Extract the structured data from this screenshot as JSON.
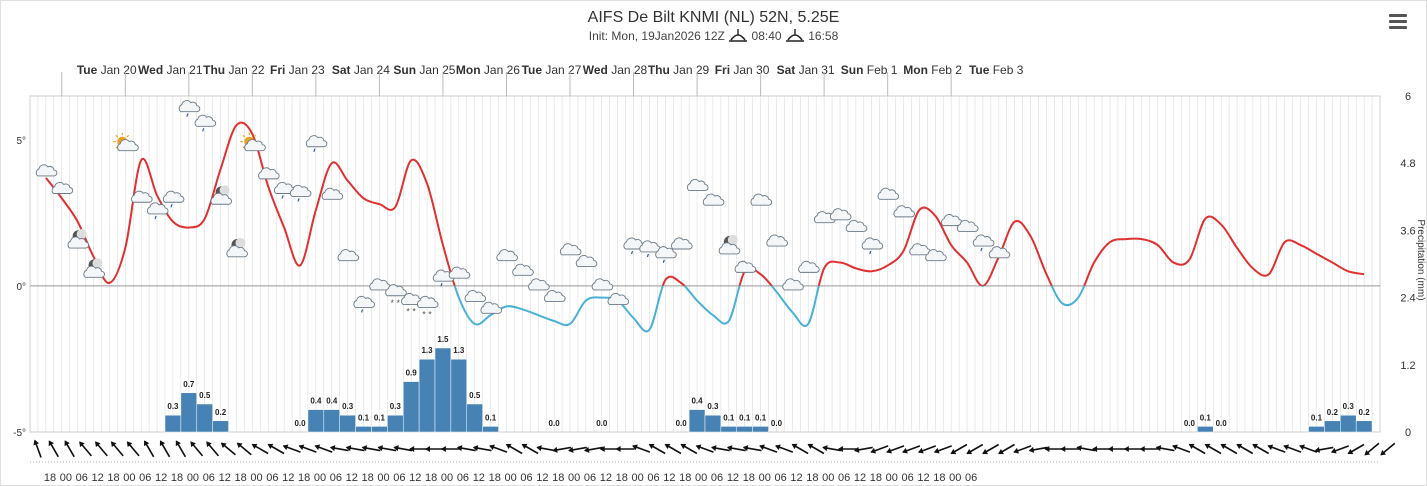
{
  "title": "AIFS De Bilt KNMI (NL) 52N, 5.25E",
  "subtitle": {
    "init": "Init: Mon, 19Jan2026 12Z",
    "sunrise": "08:40",
    "sunset": "16:58"
  },
  "menu_icon": "hamburger-menu-icon",
  "chart_data": {
    "type": "line",
    "days": [
      {
        "dow": "Tue",
        "date": "Jan 20"
      },
      {
        "dow": "Wed",
        "date": "Jan 21"
      },
      {
        "dow": "Thu",
        "date": "Jan 22"
      },
      {
        "dow": "Fri",
        "date": "Jan 23"
      },
      {
        "dow": "Sat",
        "date": "Jan 24"
      },
      {
        "dow": "Sun",
        "date": "Jan 25"
      },
      {
        "dow": "Mon",
        "date": "Jan 26"
      },
      {
        "dow": "Tue",
        "date": "Jan 27"
      },
      {
        "dow": "Wed",
        "date": "Jan 28"
      },
      {
        "dow": "Thu",
        "date": "Jan 29"
      },
      {
        "dow": "Fri",
        "date": "Jan 30"
      },
      {
        "dow": "Sat",
        "date": "Jan 31"
      },
      {
        "dow": "Sun",
        "date": "Feb 1"
      },
      {
        "dow": "Mon",
        "date": "Feb 2"
      },
      {
        "dow": "Tue",
        "date": "Feb 3"
      }
    ],
    "hour_ticks": [
      "18",
      "00",
      "06",
      "12",
      "18",
      "00",
      "06",
      "12",
      "18",
      "00",
      "06",
      "12",
      "18",
      "00",
      "06",
      "12",
      "18",
      "00",
      "06",
      "12",
      "18",
      "00",
      "06",
      "12",
      "18",
      "00",
      "06",
      "12",
      "18",
      "00",
      "06",
      "12",
      "18",
      "00",
      "06",
      "12",
      "18",
      "00",
      "06",
      "12",
      "18",
      "00",
      "06",
      "12",
      "18",
      "00",
      "06",
      "12",
      "18",
      "00",
      "06",
      "12",
      "18",
      "00",
      "06",
      "12",
      "18",
      "00",
      "06"
    ],
    "temperature_axis": {
      "ticks": [
        "5°",
        "0°",
        "-5°"
      ],
      "values": [
        5,
        0,
        -5
      ],
      "range": [
        -5,
        6.5
      ]
    },
    "precip_axis": {
      "label": "Precipitation (mm)",
      "ticks": [
        "6",
        "4.8",
        "3.6",
        "2.4",
        "1.2",
        "0"
      ],
      "range": [
        0,
        6
      ]
    },
    "series": [
      {
        "color_warm": "#e03030",
        "color_cold": "#4ab0d8",
        "values": [
          [
            0,
            3.7
          ],
          [
            6,
            3.0
          ],
          [
            12,
            2.2
          ],
          [
            18,
            1.0
          ],
          [
            24,
            0.1
          ],
          [
            30,
            1.3
          ],
          [
            36,
            4.3
          ],
          [
            42,
            3.1
          ],
          [
            48,
            2.2
          ],
          [
            54,
            2.0
          ],
          [
            60,
            2.3
          ],
          [
            66,
            4.0
          ],
          [
            72,
            5.5
          ],
          [
            78,
            5.2
          ],
          [
            84,
            3.4
          ],
          [
            90,
            2.0
          ],
          [
            96,
            0.7
          ],
          [
            102,
            2.6
          ],
          [
            108,
            4.2
          ],
          [
            114,
            3.6
          ],
          [
            120,
            3.0
          ],
          [
            126,
            2.8
          ],
          [
            132,
            2.7
          ],
          [
            138,
            4.3
          ],
          [
            144,
            3.5
          ],
          [
            150,
            1.4
          ],
          [
            156,
            -0.4
          ],
          [
            162,
            -1.3
          ],
          [
            168,
            -1.0
          ],
          [
            174,
            -0.7
          ],
          [
            180,
            -0.8
          ],
          [
            186,
            -1.0
          ],
          [
            192,
            -1.2
          ],
          [
            198,
            -1.3
          ],
          [
            204,
            -0.5
          ],
          [
            210,
            -0.4
          ],
          [
            216,
            -0.5
          ],
          [
            222,
            -1.1
          ],
          [
            228,
            -1.5
          ],
          [
            234,
            0.2
          ],
          [
            240,
            0.1
          ],
          [
            246,
            -0.5
          ],
          [
            252,
            -1.0
          ],
          [
            258,
            -1.2
          ],
          [
            264,
            0.5
          ],
          [
            270,
            0.4
          ],
          [
            276,
            -0.2
          ],
          [
            282,
            -0.9
          ],
          [
            288,
            -1.3
          ],
          [
            294,
            0.6
          ],
          [
            300,
            0.8
          ],
          [
            306,
            0.6
          ],
          [
            312,
            0.5
          ],
          [
            318,
            0.7
          ],
          [
            324,
            1.2
          ],
          [
            330,
            2.6
          ],
          [
            336,
            2.4
          ],
          [
            342,
            1.4
          ],
          [
            348,
            0.8
          ],
          [
            354,
            0.0
          ],
          [
            360,
            1.0
          ],
          [
            366,
            2.2
          ],
          [
            372,
            1.7
          ],
          [
            378,
            0.4
          ],
          [
            384,
            -0.6
          ],
          [
            390,
            -0.4
          ],
          [
            396,
            0.8
          ],
          [
            402,
            1.5
          ],
          [
            408,
            1.6
          ],
          [
            414,
            1.6
          ],
          [
            420,
            1.4
          ],
          [
            426,
            0.8
          ],
          [
            432,
            0.9
          ],
          [
            438,
            2.3
          ],
          [
            444,
            2.1
          ],
          [
            450,
            1.3
          ],
          [
            456,
            0.6
          ],
          [
            462,
            0.4
          ],
          [
            468,
            1.5
          ],
          [
            474,
            1.4
          ],
          [
            480,
            1.1
          ],
          [
            486,
            0.8
          ],
          [
            492,
            0.5
          ],
          [
            498,
            0.4
          ]
        ]
      }
    ],
    "precipitation": [
      {
        "h": 0,
        "v": 0.0,
        "lbl": ""
      },
      {
        "h": 6,
        "v": 0.0,
        "lbl": ""
      },
      {
        "h": 12,
        "v": 0.0,
        "lbl": ""
      },
      {
        "h": 18,
        "v": 0.0,
        "lbl": ""
      },
      {
        "h": 24,
        "v": 0.0,
        "lbl": ""
      },
      {
        "h": 30,
        "v": 0.0,
        "lbl": ""
      },
      {
        "h": 36,
        "v": 0.0,
        "lbl": ""
      },
      {
        "h": 42,
        "v": 0.0,
        "lbl": ""
      },
      {
        "h": 48,
        "v": 0.3,
        "lbl": "0.3"
      },
      {
        "h": 54,
        "v": 0.7,
        "lbl": "0.7"
      },
      {
        "h": 60,
        "v": 0.5,
        "lbl": "0.5"
      },
      {
        "h": 66,
        "v": 0.2,
        "lbl": "0.2"
      },
      {
        "h": 72,
        "v": 0.0,
        "lbl": ""
      },
      {
        "h": 78,
        "v": 0.0,
        "lbl": ""
      },
      {
        "h": 84,
        "v": 0.0,
        "lbl": ""
      },
      {
        "h": 90,
        "v": 0.0,
        "lbl": ""
      },
      {
        "h": 96,
        "v": 0.0,
        "lbl": "0.0"
      },
      {
        "h": 102,
        "v": 0.4,
        "lbl": "0.4"
      },
      {
        "h": 108,
        "v": 0.4,
        "lbl": "0.4"
      },
      {
        "h": 114,
        "v": 0.3,
        "lbl": "0.3"
      },
      {
        "h": 120,
        "v": 0.1,
        "lbl": "0.1"
      },
      {
        "h": 126,
        "v": 0.1,
        "lbl": "0.1"
      },
      {
        "h": 132,
        "v": 0.3,
        "lbl": "0.3"
      },
      {
        "h": 138,
        "v": 0.9,
        "lbl": "0.9"
      },
      {
        "h": 144,
        "v": 1.3,
        "lbl": "1.3"
      },
      {
        "h": 150,
        "v": 1.5,
        "lbl": "1.5"
      },
      {
        "h": 156,
        "v": 1.3,
        "lbl": "1.3"
      },
      {
        "h": 162,
        "v": 0.5,
        "lbl": "0.5"
      },
      {
        "h": 168,
        "v": 0.1,
        "lbl": "0.1"
      },
      {
        "h": 174,
        "v": 0.0,
        "lbl": ""
      },
      {
        "h": 180,
        "v": 0.0,
        "lbl": ""
      },
      {
        "h": 186,
        "v": 0.0,
        "lbl": ""
      },
      {
        "h": 192,
        "v": 0.0,
        "lbl": "0.0"
      },
      {
        "h": 198,
        "v": 0.0,
        "lbl": ""
      },
      {
        "h": 204,
        "v": 0.0,
        "lbl": ""
      },
      {
        "h": 210,
        "v": 0.0,
        "lbl": "0.0"
      },
      {
        "h": 216,
        "v": 0.0,
        "lbl": ""
      },
      {
        "h": 222,
        "v": 0.0,
        "lbl": ""
      },
      {
        "h": 228,
        "v": 0.0,
        "lbl": ""
      },
      {
        "h": 234,
        "v": 0.0,
        "lbl": ""
      },
      {
        "h": 240,
        "v": 0.0,
        "lbl": "0.0"
      },
      {
        "h": 246,
        "v": 0.4,
        "lbl": "0.4"
      },
      {
        "h": 252,
        "v": 0.3,
        "lbl": "0.3"
      },
      {
        "h": 258,
        "v": 0.1,
        "lbl": "0.1"
      },
      {
        "h": 264,
        "v": 0.1,
        "lbl": "0.1"
      },
      {
        "h": 270,
        "v": 0.1,
        "lbl": "0.1"
      },
      {
        "h": 276,
        "v": 0.0,
        "lbl": "0.0"
      },
      {
        "h": 282,
        "v": 0.0,
        "lbl": ""
      },
      {
        "h": 288,
        "v": 0.0,
        "lbl": ""
      },
      {
        "h": 294,
        "v": 0.0,
        "lbl": ""
      },
      {
        "h": 300,
        "v": 0.0,
        "lbl": ""
      },
      {
        "h": 306,
        "v": 0.0,
        "lbl": ""
      },
      {
        "h": 312,
        "v": 0.0,
        "lbl": ""
      },
      {
        "h": 318,
        "v": 0.0,
        "lbl": ""
      },
      {
        "h": 324,
        "v": 0.0,
        "lbl": ""
      },
      {
        "h": 330,
        "v": 0.0,
        "lbl": ""
      },
      {
        "h": 336,
        "v": 0.0,
        "lbl": ""
      },
      {
        "h": 342,
        "v": 0.0,
        "lbl": ""
      },
      {
        "h": 348,
        "v": 0.0,
        "lbl": ""
      },
      {
        "h": 354,
        "v": 0.0,
        "lbl": ""
      },
      {
        "h": 360,
        "v": 0.0,
        "lbl": ""
      },
      {
        "h": 366,
        "v": 0.0,
        "lbl": ""
      },
      {
        "h": 372,
        "v": 0.0,
        "lbl": ""
      },
      {
        "h": 378,
        "v": 0.0,
        "lbl": ""
      },
      {
        "h": 384,
        "v": 0.0,
        "lbl": ""
      },
      {
        "h": 390,
        "v": 0.0,
        "lbl": ""
      },
      {
        "h": 396,
        "v": 0.0,
        "lbl": ""
      },
      {
        "h": 402,
        "v": 0.0,
        "lbl": ""
      },
      {
        "h": 408,
        "v": 0.0,
        "lbl": ""
      },
      {
        "h": 414,
        "v": 0.0,
        "lbl": ""
      },
      {
        "h": 420,
        "v": 0.0,
        "lbl": ""
      },
      {
        "h": 426,
        "v": 0.0,
        "lbl": ""
      },
      {
        "h": 432,
        "v": 0.0,
        "lbl": "0.0"
      },
      {
        "h": 438,
        "v": 0.1,
        "lbl": "0.1"
      },
      {
        "h": 444,
        "v": 0.0,
        "lbl": "0.0"
      },
      {
        "h": 450,
        "v": 0.0,
        "lbl": ""
      },
      {
        "h": 456,
        "v": 0.0,
        "lbl": ""
      },
      {
        "h": 462,
        "v": 0.0,
        "lbl": ""
      },
      {
        "h": 468,
        "v": 0.0,
        "lbl": ""
      },
      {
        "h": 474,
        "v": 0.0,
        "lbl": ""
      },
      {
        "h": 480,
        "v": 0.1,
        "lbl": "0.1"
      },
      {
        "h": 486,
        "v": 0.2,
        "lbl": "0.2"
      },
      {
        "h": 492,
        "v": 0.3,
        "lbl": "0.3"
      },
      {
        "h": 498,
        "v": 0.2,
        "lbl": "0.2"
      }
    ],
    "weather_icons": [
      {
        "h": 0,
        "icon": "cloud",
        "t": 3.9
      },
      {
        "h": 6,
        "icon": "cloud",
        "t": 3.3
      },
      {
        "h": 12,
        "icon": "night-cloud",
        "t": 1.5
      },
      {
        "h": 18,
        "icon": "night-cloud",
        "t": 0.5
      },
      {
        "h": 30,
        "icon": "sun-cloud",
        "t": 4.8
      },
      {
        "h": 36,
        "icon": "cloud",
        "t": 3.0
      },
      {
        "h": 42,
        "icon": "cloud-rain",
        "t": 2.6
      },
      {
        "h": 48,
        "icon": "cloud-rain",
        "t": 3.0
      },
      {
        "h": 54,
        "icon": "cloud-rain",
        "t": 6.1
      },
      {
        "h": 60,
        "icon": "cloud-rain",
        "t": 5.6
      },
      {
        "h": 66,
        "icon": "night-cloud",
        "t": 3.0
      },
      {
        "h": 72,
        "icon": "night-cloud",
        "t": 1.2
      },
      {
        "h": 78,
        "icon": "sun-cloud",
        "t": 4.8
      },
      {
        "h": 84,
        "icon": "cloud",
        "t": 3.8
      },
      {
        "h": 90,
        "icon": "cloud-rain",
        "t": 3.3
      },
      {
        "h": 96,
        "icon": "cloud-rain",
        "t": 3.2
      },
      {
        "h": 102,
        "icon": "cloud-rain",
        "t": 4.9
      },
      {
        "h": 108,
        "icon": "cloud",
        "t": 3.1
      },
      {
        "h": 114,
        "icon": "cloud",
        "t": 1.0
      },
      {
        "h": 120,
        "icon": "cloud-rain",
        "t": -0.6
      },
      {
        "h": 126,
        "icon": "cloud",
        "t": 0.0
      },
      {
        "h": 132,
        "icon": "cloud-snow",
        "t": -0.2
      },
      {
        "h": 138,
        "icon": "cloud-snow",
        "t": -0.5
      },
      {
        "h": 144,
        "icon": "cloud-snow",
        "t": -0.6
      },
      {
        "h": 150,
        "icon": "cloud-rain",
        "t": 0.3
      },
      {
        "h": 156,
        "icon": "cloud",
        "t": 0.4
      },
      {
        "h": 162,
        "icon": "cloud",
        "t": -0.4
      },
      {
        "h": 168,
        "icon": "cloud",
        "t": -0.8
      },
      {
        "h": 174,
        "icon": "cloud",
        "t": 1.0
      },
      {
        "h": 180,
        "icon": "cloud",
        "t": 0.5
      },
      {
        "h": 186,
        "icon": "cloud",
        "t": 0.0
      },
      {
        "h": 192,
        "icon": "cloud",
        "t": -0.4
      },
      {
        "h": 198,
        "icon": "cloud",
        "t": 1.2
      },
      {
        "h": 204,
        "icon": "cloud",
        "t": 0.8
      },
      {
        "h": 210,
        "icon": "cloud",
        "t": 0.0
      },
      {
        "h": 216,
        "icon": "cloud",
        "t": -0.5
      },
      {
        "h": 222,
        "icon": "cloud-rain",
        "t": 1.4
      },
      {
        "h": 228,
        "icon": "cloud-rain",
        "t": 1.3
      },
      {
        "h": 234,
        "icon": "cloud-rain",
        "t": 1.1
      },
      {
        "h": 240,
        "icon": "cloud",
        "t": 1.4
      },
      {
        "h": 246,
        "icon": "cloud",
        "t": 3.4
      },
      {
        "h": 252,
        "icon": "cloud",
        "t": 2.9
      },
      {
        "h": 258,
        "icon": "night-cloud",
        "t": 1.3
      },
      {
        "h": 264,
        "icon": "cloud",
        "t": 0.6
      },
      {
        "h": 270,
        "icon": "cloud",
        "t": 2.9
      },
      {
        "h": 276,
        "icon": "cloud",
        "t": 1.5
      },
      {
        "h": 282,
        "icon": "cloud",
        "t": 0.0
      },
      {
        "h": 288,
        "icon": "cloud",
        "t": 0.6
      },
      {
        "h": 294,
        "icon": "cloud",
        "t": 2.3
      },
      {
        "h": 300,
        "icon": "cloud",
        "t": 2.4
      },
      {
        "h": 306,
        "icon": "cloud",
        "t": 2.0
      },
      {
        "h": 312,
        "icon": "cloud-rain",
        "t": 1.4
      },
      {
        "h": 318,
        "icon": "cloud",
        "t": 3.1
      },
      {
        "h": 324,
        "icon": "cloud",
        "t": 2.5
      },
      {
        "h": 330,
        "icon": "cloud",
        "t": 1.2
      },
      {
        "h": 336,
        "icon": "cloud",
        "t": 1.0
      },
      {
        "h": 342,
        "icon": "cloud",
        "t": 2.2
      },
      {
        "h": 348,
        "icon": "cloud",
        "t": 2.0
      },
      {
        "h": 354,
        "icon": "cloud-rain",
        "t": 1.5
      },
      {
        "h": 360,
        "icon": "cloud",
        "t": 1.1
      }
    ],
    "wind_directions_deg": [
      340,
      330,
      330,
      320,
      320,
      320,
      320,
      330,
      330,
      330,
      320,
      320,
      310,
      310,
      300,
      300,
      290,
      290,
      290,
      280,
      280,
      280,
      280,
      280,
      270,
      270,
      270,
      280,
      280,
      290,
      300,
      300,
      280,
      260,
      260,
      260,
      270,
      270,
      290,
      300,
      300,
      300,
      290,
      280,
      280,
      280,
      290,
      290,
      300,
      300,
      280,
      270,
      260,
      250,
      250,
      250,
      250,
      250,
      240,
      240,
      240,
      240,
      250,
      260,
      270,
      270,
      280,
      270,
      270,
      270,
      270,
      280,
      290,
      300,
      300,
      300,
      300,
      300,
      290,
      290,
      290,
      260,
      250,
      240,
      230,
      230
    ],
    "colors": {
      "warm_line": "#e03030",
      "cold_line": "#4ab0d8",
      "precip_bar": "#4682b4",
      "grid": "#d6d6d6",
      "zero_line": "#999999"
    }
  }
}
